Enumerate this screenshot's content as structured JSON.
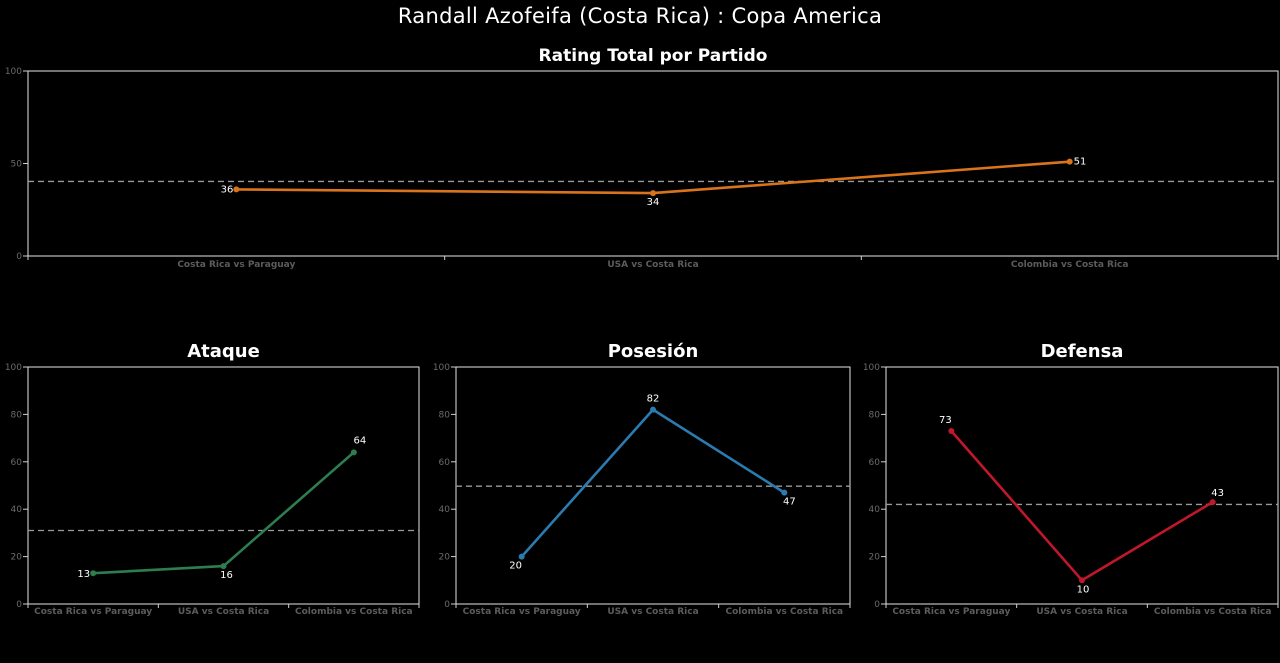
{
  "title": "Randall Azofeifa (Costa  Rica) :  Copa  America",
  "chart_data": [
    {
      "id": "total",
      "type": "line",
      "title": "Rating Total por Partido",
      "categories": [
        "Costa Rica vs Paraguay",
        "USA vs Costa Rica",
        "Colombia vs Costa Rica"
      ],
      "values": [
        36,
        34,
        51
      ],
      "value_labels": [
        "36",
        "34",
        "51"
      ],
      "reference_line": 40.3,
      "ylim": [
        0,
        100
      ],
      "yticks": [
        0,
        50,
        100
      ],
      "color": "#d9731c"
    },
    {
      "id": "ataque",
      "type": "line",
      "title": "Ataque",
      "categories": [
        "Costa Rica vs Paraguay",
        "USA vs Costa Rica",
        "Colombia vs Costa Rica"
      ],
      "values": [
        13,
        16,
        64
      ],
      "value_labels": [
        "13",
        "16",
        "64"
      ],
      "reference_line": 31,
      "ylim": [
        0,
        100
      ],
      "yticks": [
        0,
        20,
        40,
        60,
        80,
        100
      ],
      "color": "#2e7d4f"
    },
    {
      "id": "posesion",
      "type": "line",
      "title": "Posesión",
      "categories": [
        "Costa Rica vs Paraguay",
        "USA vs Costa Rica",
        "Colombia vs Costa Rica"
      ],
      "values": [
        20,
        82,
        47
      ],
      "value_labels": [
        "20",
        "82",
        "47"
      ],
      "reference_line": 49.7,
      "ylim": [
        0,
        100
      ],
      "yticks": [
        0,
        20,
        40,
        60,
        80,
        100
      ],
      "color": "#2b7bb0"
    },
    {
      "id": "defensa",
      "type": "line",
      "title": "Defensa",
      "categories": [
        "Costa Rica vs Paraguay",
        "USA vs Costa Rica",
        "Colombia vs Costa Rica"
      ],
      "values": [
        73,
        10,
        43
      ],
      "value_labels": [
        "73",
        "10",
        "43"
      ],
      "reference_line": 42,
      "ylim": [
        0,
        100
      ],
      "yticks": [
        0,
        20,
        40,
        60,
        80,
        100
      ],
      "color": "#c0172b"
    }
  ]
}
